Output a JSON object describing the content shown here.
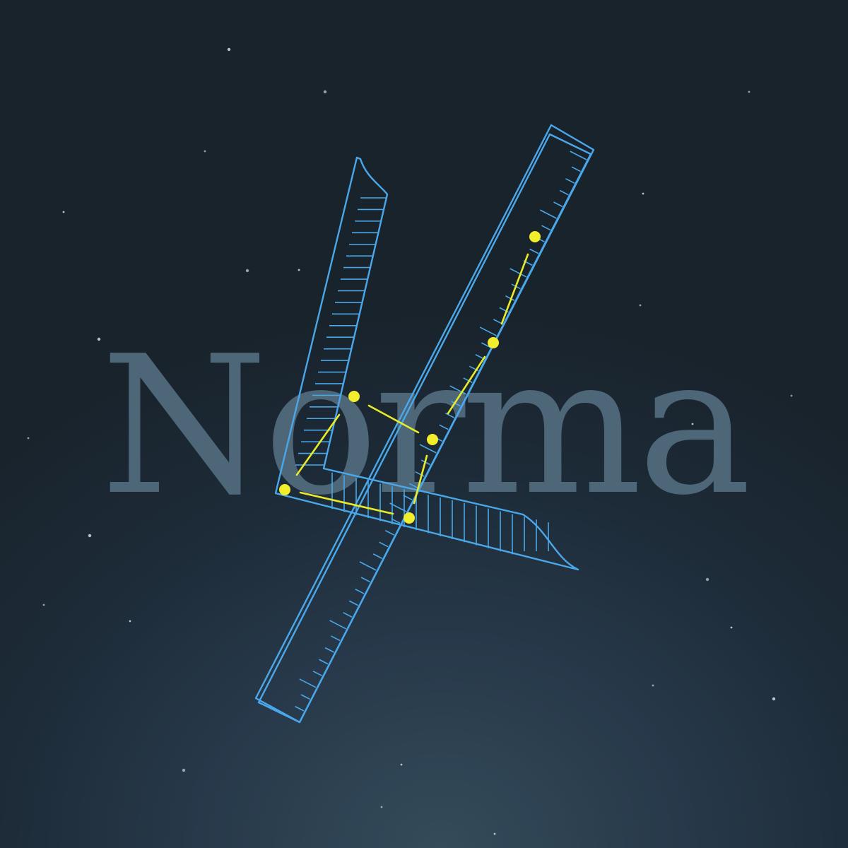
{
  "title": "Norma",
  "colors": {
    "line": "#4aa8ea",
    "link": "#e8ea2a",
    "star": "#f2ee2c",
    "title": "#4d6678",
    "background_top": "#19232c",
    "background_glow": "#344b5a"
  },
  "constellation": {
    "stars": [
      {
        "name": "star-1"
      },
      {
        "name": "star-2"
      },
      {
        "name": "star-3"
      },
      {
        "name": "star-4"
      },
      {
        "name": "star-5"
      },
      {
        "name": "star-6"
      },
      {
        "name": "star-7"
      }
    ]
  }
}
